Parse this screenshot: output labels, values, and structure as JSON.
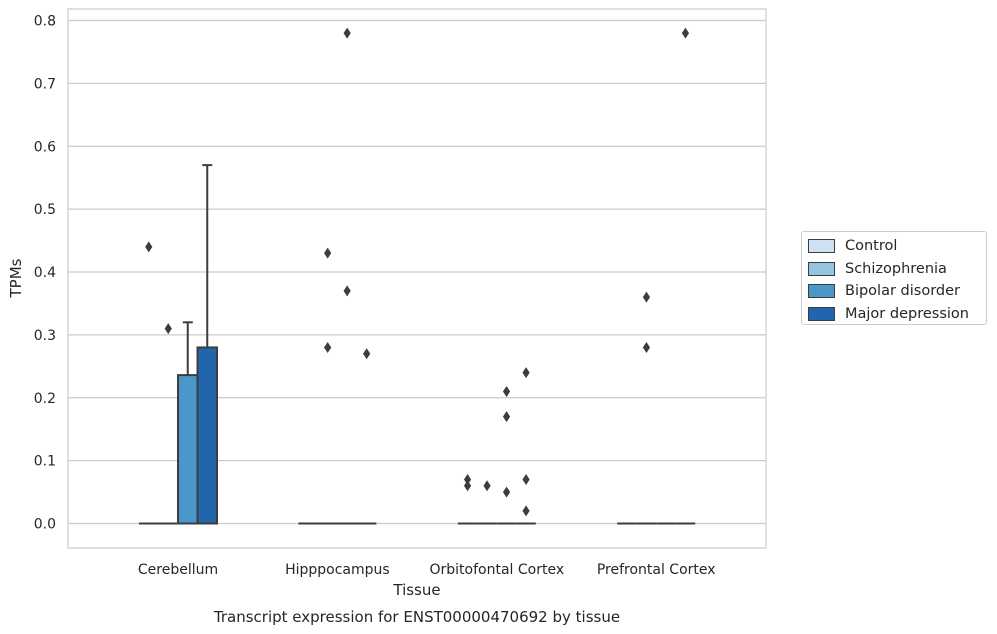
{
  "chart_data": {
    "type": "bar",
    "xlabel": "Tissue",
    "ylabel": "TPMs",
    "caption": "Transcript expression for ENST00000470692 by tissue",
    "ylim": [
      -0.04,
      0.82
    ],
    "yticks": [
      "0.0",
      "0.1",
      "0.2",
      "0.3",
      "0.4",
      "0.5",
      "0.6",
      "0.7",
      "0.8"
    ],
    "ytick_values": [
      0.0,
      0.1,
      0.2,
      0.3,
      0.4,
      0.5,
      0.6,
      0.7,
      0.8
    ],
    "categories": [
      "Cerebellum",
      "Hipppocampus",
      "Orbitofontal Cortex",
      "Prefrontal Cortex"
    ],
    "grid": "horizontal",
    "legend_position": "right",
    "series": [
      {
        "name": "Control",
        "color": "#d0e1f2",
        "values": [
          0.0,
          0.0,
          0.0,
          0.0
        ],
        "whisker_high": [
          null,
          null,
          null,
          null
        ],
        "outliers": [
          [
            0.44
          ],
          [],
          [
            0.07,
            0.06
          ],
          []
        ]
      },
      {
        "name": "Schizophrenia",
        "color": "#94c4df",
        "values": [
          0.0,
          0.0,
          0.0,
          0.0
        ],
        "whisker_high": [
          null,
          null,
          null,
          null
        ],
        "outliers": [
          [
            0.31
          ],
          [
            0.43,
            0.28
          ],
          [
            0.06
          ],
          [
            0.36,
            0.28
          ]
        ]
      },
      {
        "name": "Bipolar disorder",
        "color": "#4a98c9",
        "values": [
          0.236,
          0.0,
          0.0,
          0.0
        ],
        "whisker_high": [
          0.32,
          null,
          null,
          null
        ],
        "outliers": [
          [],
          [
            0.78,
            0.37
          ],
          [
            0.21,
            0.17,
            0.05
          ],
          []
        ]
      },
      {
        "name": "Major depression",
        "color": "#2166ac",
        "values": [
          0.28,
          0.0,
          0.0,
          0.0
        ],
        "whisker_high": [
          0.57,
          null,
          null,
          null
        ],
        "outliers": [
          [],
          [
            0.27
          ],
          [
            0.24,
            0.07,
            0.02
          ],
          [
            0.78
          ]
        ]
      }
    ]
  }
}
